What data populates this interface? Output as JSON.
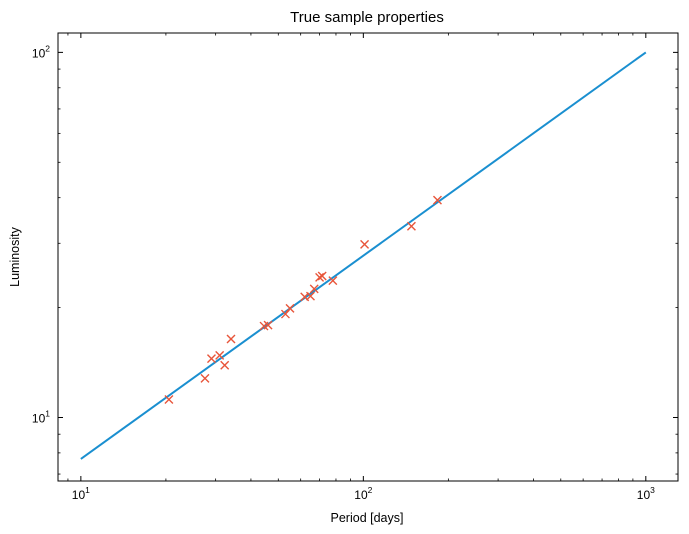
{
  "chart_data": {
    "type": "scatter",
    "title": "True sample properties",
    "xlabel": "Period [days]",
    "ylabel": "Luminosity",
    "xscale": "log",
    "yscale": "log",
    "xlim": [
      8.3,
      1300
    ],
    "ylim": [
      6.7,
      113
    ],
    "grid": false,
    "x_ticks": [
      {
        "base": "10",
        "exp": "1",
        "value": 10
      },
      {
        "base": "10",
        "exp": "2",
        "value": 100
      },
      {
        "base": "10",
        "exp": "3",
        "value": 1000
      }
    ],
    "y_ticks": [
      {
        "base": "10",
        "exp": "1",
        "value": 10
      },
      {
        "base": "10",
        "exp": "2",
        "value": 100
      }
    ],
    "series": [
      {
        "kind": "line",
        "color": "#1a8fd0",
        "x": [
          10,
          1000
        ],
        "y": [
          7.7,
          100
        ]
      },
      {
        "kind": "scatter",
        "marker": "x",
        "color": "#e8553a",
        "points": [
          {
            "x": 20.5,
            "y": 11.2
          },
          {
            "x": 27.5,
            "y": 12.8
          },
          {
            "x": 29,
            "y": 14.5
          },
          {
            "x": 31,
            "y": 14.8
          },
          {
            "x": 32.3,
            "y": 13.9
          },
          {
            "x": 34,
            "y": 16.4
          },
          {
            "x": 44.5,
            "y": 17.8
          },
          {
            "x": 46,
            "y": 17.9
          },
          {
            "x": 53,
            "y": 19.2
          },
          {
            "x": 55,
            "y": 19.9
          },
          {
            "x": 62,
            "y": 21.4
          },
          {
            "x": 65,
            "y": 21.5
          },
          {
            "x": 67,
            "y": 22.5
          },
          {
            "x": 70,
            "y": 24.2
          },
          {
            "x": 71.5,
            "y": 24.4
          },
          {
            "x": 78,
            "y": 23.7
          },
          {
            "x": 101,
            "y": 29.8
          },
          {
            "x": 148,
            "y": 33.4
          },
          {
            "x": 183,
            "y": 39.4
          }
        ]
      }
    ]
  }
}
